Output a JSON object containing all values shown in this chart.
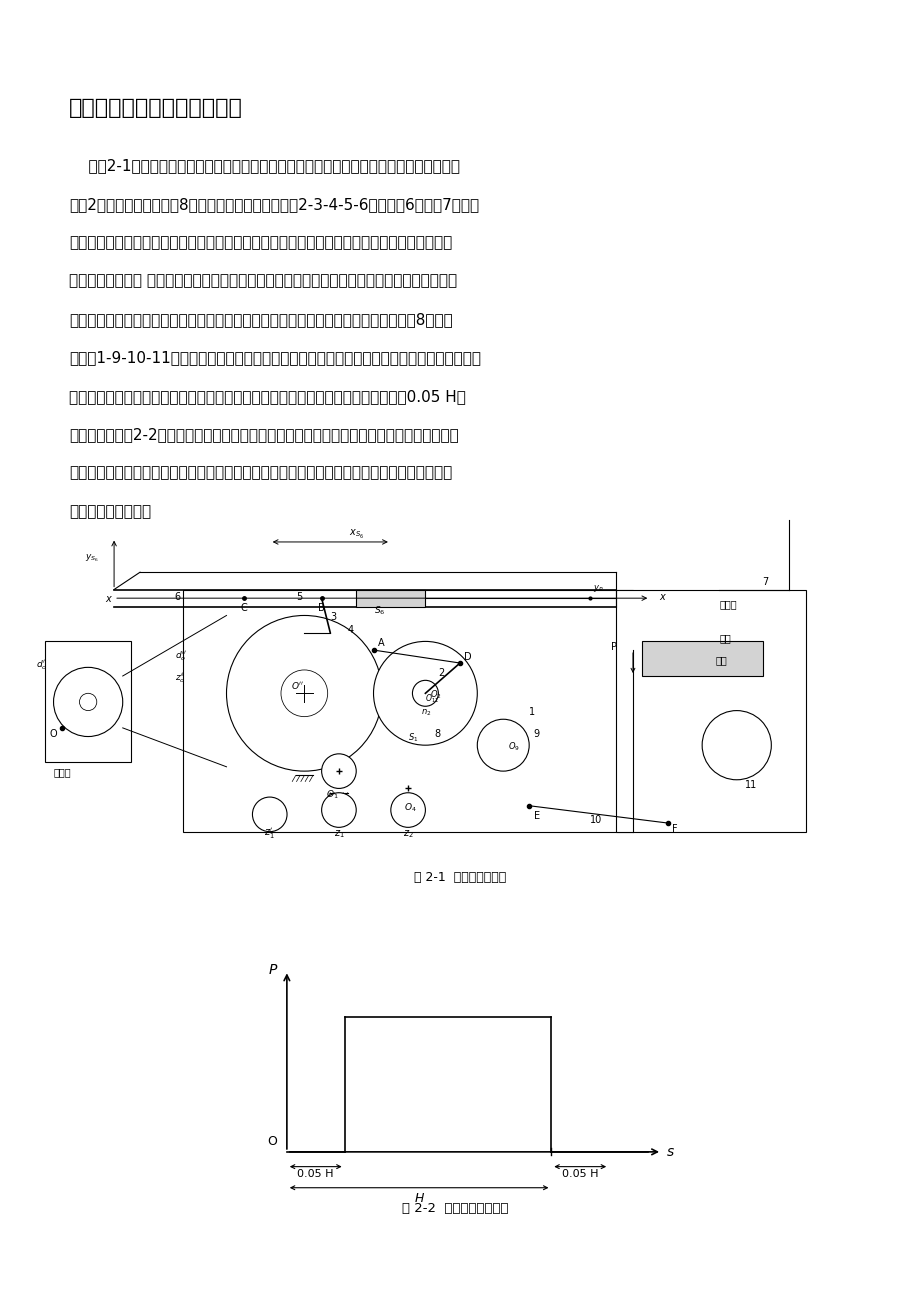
{
  "title": "二、牛头刨床设计数据与内容",
  "lines": [
    "    如图2-1所示，牛头刨床是一种用于平面切削加工的机床。电动机经皮带和齿轮传动，带动",
    "曲柄2和固结在其上的凸轮8。刨床工作时，由导杆机构2-3-4-5-6带动刨头6和刨刀7作往复",
    "运动。刨头右行时，刨刀进行切削，称工作行程，此时要求速度较低并且均匀，以减少电动机容",
    "量和提高切削质量 刨头左行时，刨刀不切削，称空回行程，此时要求速度较高，以提高生产率。",
    "为此刨床采用有急回作用的导杆机构。刨刀每切削完一次，利用空回行程的时间，凸轮8通过四",
    "杆机构1-9-10-11与棘轮带动螺旋机构（图中未画），使工作台连同工件作一次进给运动，以便",
    "刨刀继续切削。刨头在工作行程中，受到很大的切削阻力（在切削的前后各有一段约0.05 H的",
    "空刀距离，见图2-2），而空回行程中则没有切削阻力。因此刨头在整个运动循环中，受力变化",
    "是很大的，这就影响了主轴的匀速运转，故需安装飞轮来减小主轴的速度波动，以提高切削质量",
    "和减少电动机容量。"
  ],
  "fig1_caption": "图 2-1  牛头刨机构简图",
  "fig2_caption": "图 2-2  牛头刨阻力曲线图",
  "bg_color": "#ffffff",
  "text_color": "#000000"
}
